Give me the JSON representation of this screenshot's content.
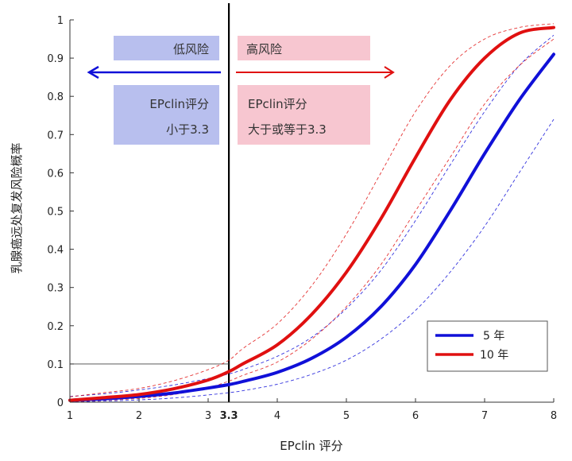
{
  "chart_data": {
    "type": "line",
    "xlabel": "EPclin 评分",
    "ylabel": "乳腺癌远处复发风险概率",
    "xlim": [
      1,
      8
    ],
    "ylim": [
      0,
      1
    ],
    "x_ticks": [
      "1",
      "2",
      "3",
      "3.3",
      "4",
      "5",
      "6",
      "7",
      "8"
    ],
    "y_ticks": [
      "0",
      "0.1",
      "0.2",
      "0.3",
      "0.4",
      "0.5",
      "0.6",
      "0.7",
      "0.8",
      "0.9",
      "1"
    ],
    "grid": false,
    "legend_position": "bottom-right",
    "cutoff": {
      "x": 3.3,
      "label": "3.3",
      "reference_y": 0.1
    },
    "x": [
      1,
      1.5,
      2,
      2.5,
      3,
      3.3,
      3.5,
      4,
      4.5,
      5,
      5.5,
      6,
      6.5,
      7,
      7.5,
      8
    ],
    "series": [
      {
        "name": "5 年",
        "color": "#1010d8",
        "values": [
          0.005,
          0.009,
          0.015,
          0.024,
          0.037,
          0.046,
          0.054,
          0.078,
          0.115,
          0.17,
          0.25,
          0.36,
          0.5,
          0.65,
          0.79,
          0.91
        ],
        "lower": [
          0.001,
          0.003,
          0.006,
          0.011,
          0.019,
          0.025,
          0.03,
          0.047,
          0.073,
          0.11,
          0.165,
          0.24,
          0.34,
          0.46,
          0.6,
          0.74
        ],
        "upper": [
          0.015,
          0.022,
          0.032,
          0.045,
          0.062,
          0.074,
          0.085,
          0.12,
          0.17,
          0.245,
          0.345,
          0.475,
          0.62,
          0.76,
          0.88,
          0.96
        ]
      },
      {
        "name": "10 年",
        "color": "#e01010",
        "values": [
          0.005,
          0.012,
          0.02,
          0.035,
          0.058,
          0.08,
          0.1,
          0.15,
          0.23,
          0.34,
          0.48,
          0.64,
          0.79,
          0.9,
          0.965,
          0.98
        ],
        "lower": [
          0.001,
          0.005,
          0.01,
          0.02,
          0.038,
          0.055,
          0.07,
          0.105,
          0.165,
          0.25,
          0.36,
          0.5,
          0.64,
          0.78,
          0.88,
          0.95
        ],
        "upper": [
          0.014,
          0.025,
          0.036,
          0.056,
          0.085,
          0.11,
          0.14,
          0.205,
          0.305,
          0.44,
          0.6,
          0.76,
          0.88,
          0.95,
          0.98,
          0.99
        ]
      }
    ],
    "annotations": {
      "low_risk": {
        "title": "低风险",
        "line1": "EPclin评分",
        "line2": "小于3.3",
        "color": "#b8bfee"
      },
      "high_risk": {
        "title": "高风险",
        "line1": "EPclin评分",
        "line2": "大于或等于3.3",
        "color": "#f7c6d0"
      },
      "low_arrow_color": "#1010d8",
      "high_arrow_color": "#e01010"
    }
  }
}
